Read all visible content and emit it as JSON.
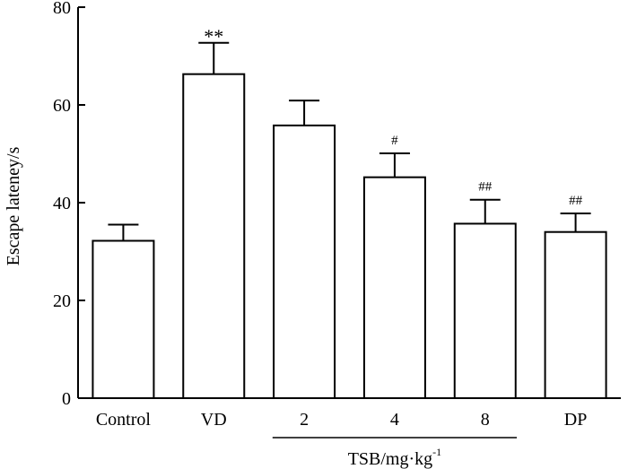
{
  "chart_data": {
    "type": "bar",
    "title": "",
    "xlabel": "",
    "ylabel": "Escape lateney/s",
    "ylim": [
      0,
      80
    ],
    "yticks": [
      0,
      20,
      40,
      60,
      80
    ],
    "yticks_labels": [
      "0",
      "20",
      "40",
      "60",
      "80"
    ],
    "grid": false,
    "categories": [
      "Control",
      "VD",
      "2",
      "4",
      "8",
      "DP"
    ],
    "values": [
      32.2,
      66.3,
      55.8,
      45.2,
      35.7,
      34.0
    ],
    "errors": [
      3.3,
      6.4,
      5.1,
      4.9,
      4.9,
      3.8
    ],
    "significance": [
      "",
      "**",
      "",
      "#",
      "##",
      "##"
    ],
    "group_label": {
      "text": "TSB/mg·kg",
      "superscript": "-1",
      "spans": [
        "2",
        "4",
        "8"
      ]
    }
  }
}
